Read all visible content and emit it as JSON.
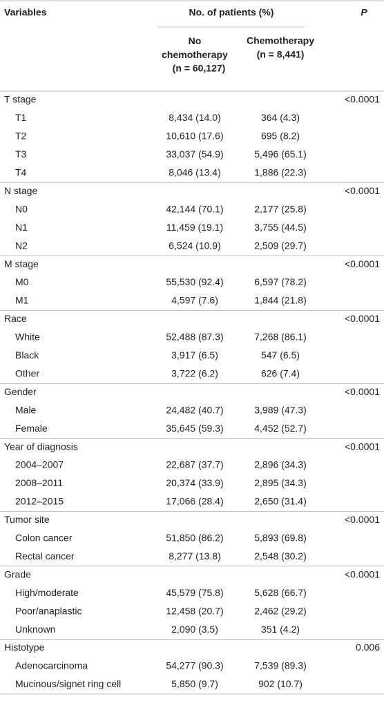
{
  "header": {
    "variables": "Variables",
    "group": "No. of patients (%)",
    "p": "P"
  },
  "columns": [
    {
      "name": "No chemotherapy",
      "n": "(n = 60,127)"
    },
    {
      "name": "Chemotherapy",
      "n": "(n = 8,441)"
    }
  ],
  "groups": [
    {
      "label": "T stage",
      "p": "<0.0001",
      "rows": [
        {
          "label": "T1",
          "values": [
            "8,434 (14.0)",
            "364 (4.3)"
          ]
        },
        {
          "label": "T2",
          "values": [
            "10,610 (17.6)",
            "695 (8.2)"
          ]
        },
        {
          "label": "T3",
          "values": [
            "33,037 (54.9)",
            "5,496 (65.1)"
          ]
        },
        {
          "label": "T4",
          "values": [
            "8,046 (13.4)",
            "1,886 (22.3)"
          ]
        }
      ]
    },
    {
      "label": "N stage",
      "p": "<0.0001",
      "rows": [
        {
          "label": "N0",
          "values": [
            "42,144 (70.1)",
            "2,177 (25.8)"
          ]
        },
        {
          "label": "N1",
          "values": [
            "11,459 (19.1)",
            "3,755 (44.5)"
          ]
        },
        {
          "label": "N2",
          "values": [
            "6,524 (10.9)",
            "2,509 (29.7)"
          ]
        }
      ]
    },
    {
      "label": "M stage",
      "p": "<0.0001",
      "rows": [
        {
          "label": "M0",
          "values": [
            "55,530 (92.4)",
            "6,597 (78.2)"
          ]
        },
        {
          "label": "M1",
          "values": [
            "4,597 (7.6)",
            "1,844 (21.8)"
          ]
        }
      ]
    },
    {
      "label": "Race",
      "p": "<0.0001",
      "rows": [
        {
          "label": "White",
          "values": [
            "52,488 (87.3)",
            "7,268 (86.1)"
          ]
        },
        {
          "label": "Black",
          "values": [
            "3,917 (6.5)",
            "547 (6.5)"
          ]
        },
        {
          "label": "Other",
          "values": [
            "3,722 (6.2)",
            "626 (7.4)"
          ]
        }
      ]
    },
    {
      "label": "Gender",
      "p": "<0.0001",
      "rows": [
        {
          "label": "Male",
          "values": [
            "24,482 (40.7)",
            "3,989 (47.3)"
          ]
        },
        {
          "label": "Female",
          "values": [
            "35,645 (59.3)",
            "4,452 (52.7)"
          ]
        }
      ]
    },
    {
      "label": "Year of diagnosis",
      "p": "<0.0001",
      "rows": [
        {
          "label": "2004–2007",
          "values": [
            "22,687 (37.7)",
            "2,896 (34.3)"
          ]
        },
        {
          "label": "2008–2011",
          "values": [
            "20,374 (33.9)",
            "2,895 (34.3)"
          ]
        },
        {
          "label": "2012–2015",
          "values": [
            "17,066 (28.4)",
            "2,650 (31.4)"
          ]
        }
      ]
    },
    {
      "label": "Tumor site",
      "p": "<0.0001",
      "rows": [
        {
          "label": "Colon cancer",
          "values": [
            "51,850 (86.2)",
            "5,893 (69.8)"
          ]
        },
        {
          "label": "Rectal cancer",
          "values": [
            "8,277 (13.8)",
            "2,548 (30.2)"
          ]
        }
      ]
    },
    {
      "label": "Grade",
      "p": "<0.0001",
      "rows": [
        {
          "label": "High/moderate",
          "values": [
            "45,579 (75.8)",
            "5,628 (66.7)"
          ]
        },
        {
          "label": "Poor/anaplastic",
          "values": [
            "12,458 (20.7)",
            "2,462 (29.2)"
          ]
        },
        {
          "label": "Unknown",
          "values": [
            "2,090 (3.5)",
            "351 (4.2)"
          ]
        }
      ]
    },
    {
      "label": "Histotype",
      "p": "0.006",
      "rows": [
        {
          "label": "Adenocarcinoma",
          "values": [
            "54,277 (90.3)",
            "7,539 (89.3)"
          ]
        },
        {
          "label": "Mucinous/signet ring cell",
          "values": [
            "5,850 (9.7)",
            "902 (10.7)"
          ]
        }
      ]
    }
  ]
}
